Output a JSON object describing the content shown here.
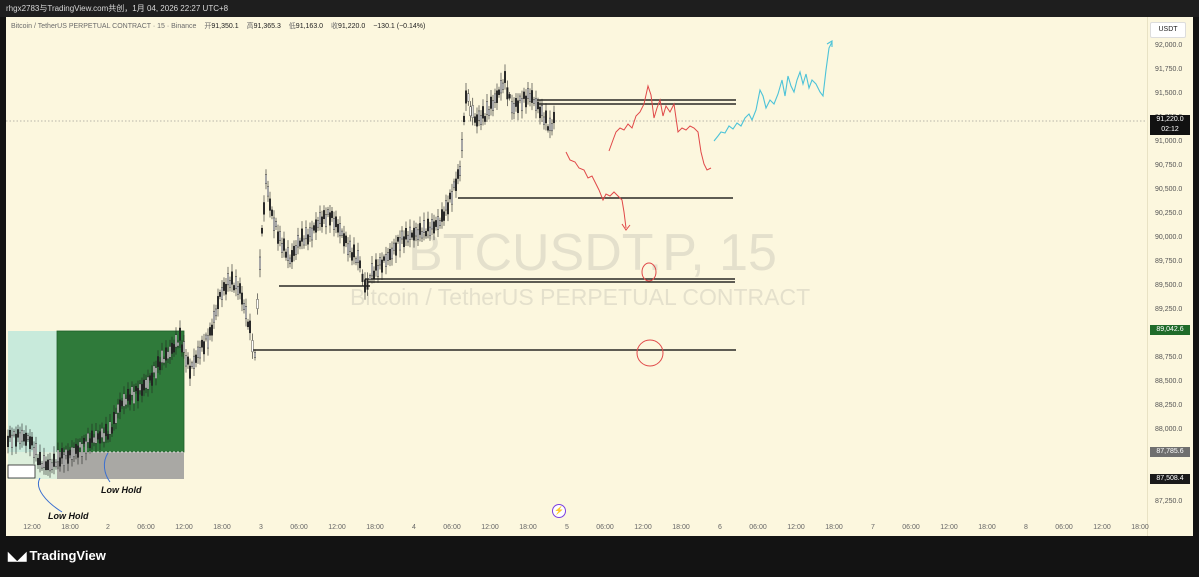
{
  "header": {
    "title": "rhgx2783与TradingView.com共创，1月 04, 2026 22:27 UTC+8"
  },
  "legend": {
    "symbol_desc": "Bitcoin / TetherUS PERPETUAL CONTRACT · 15 · Binance",
    "open_label": "开",
    "open": "91,350.1",
    "high_label": "高",
    "high": "91,365.3",
    "low_label": "低",
    "low": "91,163.0",
    "close_label": "收",
    "close": "91,220.0",
    "change": "−130.1 (−0.14%)"
  },
  "watermark": {
    "symbol": "BTCUSDT.P, 15",
    "description": "Bitcoin / TetherUS PERPETUAL CONTRACT"
  },
  "price_axis": {
    "currency": "USDT",
    "ticks": [
      "92,000.0",
      "91,750.0",
      "91,500.0",
      "91,250.0",
      "91,000.0",
      "90,750.0",
      "90,500.0",
      "90,250.0",
      "90,000.0",
      "89,750.0",
      "89,500.0",
      "89,250.0",
      "88,750.0",
      "88,500.0",
      "88,250.0",
      "88,000.0",
      "87,250.0"
    ],
    "current_price": "91,220.0",
    "countdown": "02:12",
    "tag_green": "89,042.6",
    "tag_gray": "87,785.6",
    "tag_black": "87,508.4",
    "colors": {
      "green": "#1f6b2a",
      "gray": "#6f6f6f",
      "black": "#1a1a1a"
    }
  },
  "time_axis": {
    "labels": [
      "12:00",
      "18:00",
      "2",
      "06:00",
      "12:00",
      "18:00",
      "3",
      "06:00",
      "12:00",
      "18:00",
      "4",
      "06:00",
      "12:00",
      "18:00",
      "5",
      "06:00",
      "12:00",
      "18:00",
      "6",
      "06:00",
      "12:00",
      "18:00",
      "7",
      "06:00",
      "12:00",
      "18:00",
      "8",
      "06:00",
      "12:00",
      "18:00"
    ]
  },
  "annotations": {
    "low_hold_1": "Low Hold",
    "low_hold_2": "Low Hold"
  },
  "footer": {
    "brand": "TradingView"
  },
  "icons": {
    "event": "lightning-icon",
    "logo": "tradingview-logo-icon"
  }
}
